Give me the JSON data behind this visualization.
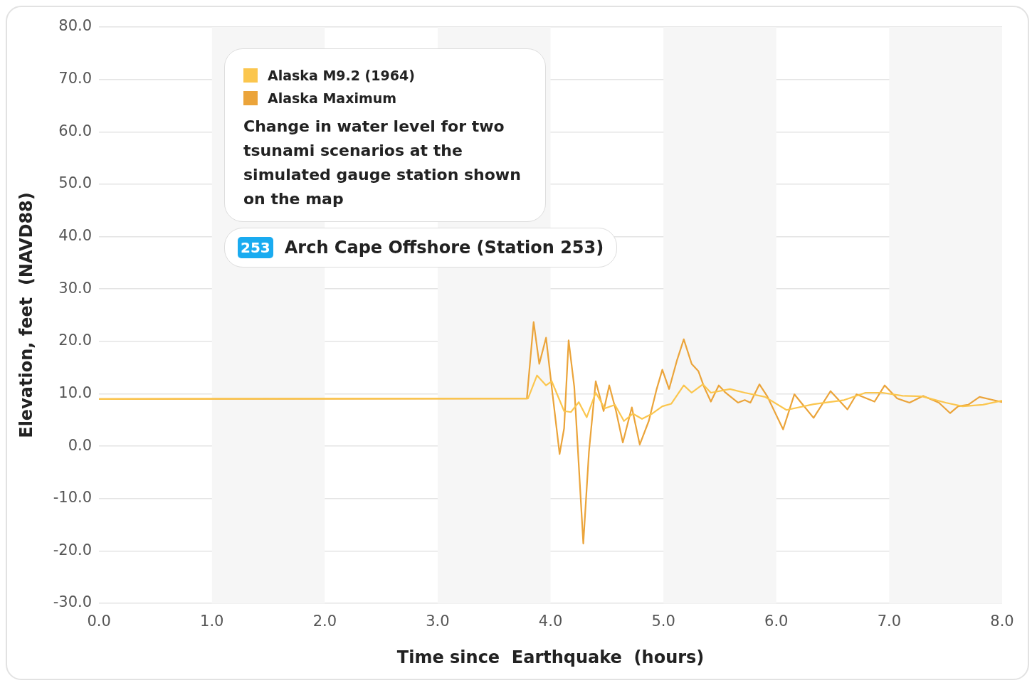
{
  "chart_data": {
    "type": "line",
    "xlabel": "Time since  Earthquake  (hours)",
    "ylabel": "Elevation, feet  (NAVD88)",
    "xlim": [
      0,
      8
    ],
    "xticks": [
      {
        "value": 0,
        "label": "0.0"
      },
      {
        "value": 1,
        "label": "1.0"
      },
      {
        "value": 2,
        "label": "2.0"
      },
      {
        "value": 3,
        "label": "3.0"
      },
      {
        "value": 4,
        "label": "4.0"
      },
      {
        "value": 5,
        "label": "5.0"
      },
      {
        "value": 6,
        "label": "6.0"
      },
      {
        "value": 7,
        "label": "7.0"
      },
      {
        "value": 8,
        "label": "8.0"
      }
    ],
    "ylim": [
      -30,
      80
    ],
    "yticks": [
      {
        "value": -30,
        "label": "-30.0"
      },
      {
        "value": -20,
        "label": "-20.0"
      },
      {
        "value": -10,
        "label": "-10.0"
      },
      {
        "value": 0,
        "label": "0.0"
      },
      {
        "value": 10,
        "label": "10.0"
      },
      {
        "value": 20,
        "label": "20.0"
      },
      {
        "value": 30,
        "label": "30.0"
      },
      {
        "value": 40,
        "label": "40.0"
      },
      {
        "value": 50,
        "label": "50.0"
      },
      {
        "value": 60,
        "label": "60.0"
      },
      {
        "value": 70,
        "label": "70.0"
      },
      {
        "value": 80,
        "label": "80.0"
      }
    ],
    "grid": "y",
    "legend": "top left",
    "marker": "none",
    "line_style": "solid",
    "bands": [
      {
        "axis": "x",
        "from": 1,
        "to": 2,
        "color": "#f6f6f6"
      },
      {
        "axis": "x",
        "from": 3,
        "to": 4,
        "color": "#f6f6f6"
      },
      {
        "axis": "x",
        "from": 5,
        "to": 6,
        "color": "#f6f6f6"
      },
      {
        "axis": "x",
        "from": 7,
        "to": 8,
        "color": "#f6f6f6"
      }
    ],
    "annotations": [
      "Change in water level for two tsunami scenarios at the simulated gauge station shown on the map",
      "253",
      "Arch Cape Offshore (Station 253)"
    ],
    "series": [
      {
        "name": "Alaska M9.2 (1964)",
        "color": "#fbc64e",
        "x": [
          0,
          3.8,
          3.88,
          3.96,
          4.01,
          4.12,
          4.18,
          4.25,
          4.32,
          4.4,
          4.48,
          4.57,
          4.65,
          4.73,
          4.81,
          4.9,
          4.99,
          5.07,
          5.18,
          5.25,
          5.35,
          5.42,
          5.59,
          5.72,
          5.9,
          6.09,
          6.33,
          6.6,
          6.79,
          6.94,
          7.12,
          7.29,
          7.5,
          7.65,
          7.83,
          8
        ],
        "values": [
          9.0,
          9.1,
          13.5,
          11.6,
          12.4,
          6.7,
          6.5,
          8.4,
          5.5,
          10.2,
          7.2,
          7.9,
          4.8,
          6.2,
          5.2,
          6.2,
          7.6,
          8.1,
          11.6,
          10.2,
          11.8,
          10.2,
          10.9,
          10.2,
          9.4,
          6.9,
          8.0,
          8.8,
          10.2,
          10.2,
          9.6,
          9.5,
          8.3,
          7.6,
          7.9,
          8.7
        ]
      },
      {
        "name": "Alaska Maximum",
        "color": "#eba43a",
        "x": [
          0,
          3.79,
          3.85,
          3.9,
          3.96,
          4.01,
          4.08,
          4.12,
          4.16,
          4.21,
          4.29,
          4.34,
          4.4,
          4.47,
          4.52,
          4.58,
          4.64,
          4.72,
          4.79,
          4.87,
          4.94,
          4.99,
          5.05,
          5.12,
          5.18,
          5.25,
          5.31,
          5.36,
          5.42,
          5.49,
          5.55,
          5.66,
          5.72,
          5.77,
          5.85,
          5.92,
          6.06,
          6.16,
          6.22,
          6.33,
          6.48,
          6.63,
          6.71,
          6.87,
          6.96,
          7.07,
          7.18,
          7.3,
          7.44,
          7.54,
          7.61,
          7.7,
          7.8,
          7.92,
          8
        ],
        "values": [
          9.0,
          9.1,
          23.7,
          15.7,
          20.7,
          11.3,
          -1.5,
          3.4,
          20.2,
          11.3,
          -18.6,
          -1.1,
          12.4,
          6.7,
          11.6,
          6.7,
          0.7,
          7.4,
          0.3,
          4.8,
          10.9,
          14.6,
          10.9,
          16.4,
          20.4,
          15.7,
          14.3,
          11.3,
          8.5,
          11.6,
          10.2,
          8.3,
          8.8,
          8.3,
          11.8,
          9.5,
          3.2,
          9.9,
          8.3,
          5.4,
          10.5,
          7.0,
          9.9,
          8.5,
          11.6,
          9.1,
          8.3,
          9.6,
          8.3,
          6.3,
          7.6,
          7.9,
          9.4,
          8.8,
          8.4
        ]
      }
    ]
  }
}
